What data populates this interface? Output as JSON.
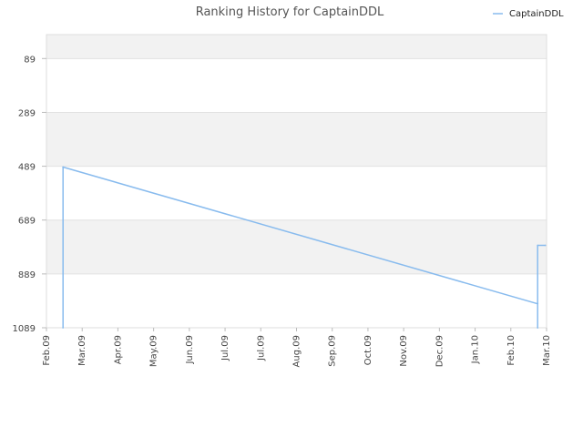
{
  "chart_data": {
    "type": "line",
    "title": "Ranking History for CaptainDDL",
    "xlabel": "",
    "ylabel": "",
    "y_inverted": true,
    "ylim": [
      1089,
      0
    ],
    "y_ticks": [
      89,
      289,
      489,
      689,
      889,
      1089
    ],
    "x_ticks": [
      "Feb.09",
      "Mar.09",
      "Apr.09",
      "May.09",
      "Jun.09",
      "Jul.09",
      "Jul.09",
      "Aug.09",
      "Sep.09",
      "Oct.09",
      "Nov.09",
      "Dec.09",
      "Jan.10",
      "Feb.10",
      "Mar.10"
    ],
    "grid": true,
    "legend_position": "top-right",
    "series": [
      {
        "name": "CaptainDDL",
        "color": "#88bbee",
        "points": [
          {
            "x": "2009-02-14",
            "y": 1089
          },
          {
            "x": "2009-02-14",
            "y": 492
          },
          {
            "x": "2010-02-22",
            "y": 1000
          },
          {
            "x": "2010-02-22",
            "y": 1089
          },
          {
            "x": "2010-02-22",
            "y": 783
          },
          {
            "x": "2010-02-28",
            "y": 783
          }
        ]
      }
    ]
  }
}
